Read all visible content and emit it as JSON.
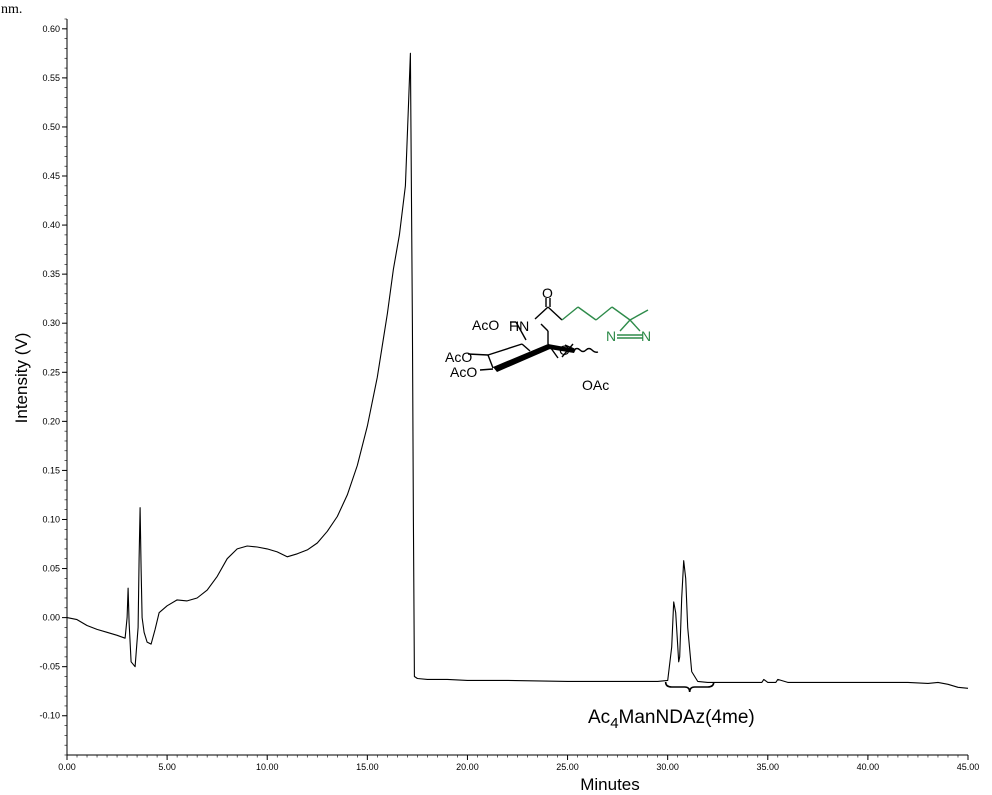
{
  "corner_text": "nm.",
  "chart_data": {
    "type": "line",
    "title": "",
    "xlabel": "Minutes",
    "ylabel": "Intensity (V)",
    "xlim": [
      0,
      45
    ],
    "ylim": [
      -0.14,
      0.61
    ],
    "x_ticks": [
      "0.00",
      "5.00",
      "10.00",
      "15.00",
      "20.00",
      "25.00",
      "30.00",
      "35.00",
      "40.00",
      "45.00"
    ],
    "x_tick_values": [
      0,
      5,
      10,
      15,
      20,
      25,
      30,
      35,
      40,
      45
    ],
    "y_ticks": [
      "0.60",
      "0.55",
      "0.50",
      "0.45",
      "0.40",
      "0.35",
      "0.30",
      "0.25",
      "0.20",
      "0.15",
      "0.10",
      "0.05",
      "0.00",
      "-0.05",
      "-0.10"
    ],
    "y_tick_values": [
      0.6,
      0.55,
      0.5,
      0.45,
      0.4,
      0.35,
      0.3,
      0.25,
      0.2,
      0.15,
      0.1,
      0.05,
      0.0,
      -0.05,
      -0.1
    ],
    "grid": false,
    "series": [
      {
        "x": [
          0,
          0.5,
          1.0,
          1.5,
          2.0,
          2.5,
          2.9,
          3.0,
          3.05,
          3.1,
          3.2,
          3.4,
          3.55,
          3.6,
          3.65,
          3.7,
          3.75,
          3.85,
          4.0,
          4.2,
          4.4,
          4.6,
          5.0,
          5.5,
          6.0,
          6.5,
          7.0,
          7.5,
          8.0,
          8.5,
          9.0,
          9.5,
          10.0,
          10.5,
          11.0,
          11.5,
          12.0,
          12.5,
          13.0,
          13.5,
          14.0,
          14.5,
          15.0,
          15.5,
          16.0,
          16.3,
          16.6,
          16.9,
          17.05,
          17.15,
          17.25,
          17.3,
          17.35,
          17.5,
          18.0,
          19.0,
          20.0,
          22.0,
          25.0,
          28.0,
          29.5,
          30.0,
          30.2,
          30.3,
          30.4,
          30.55,
          30.6,
          30.7,
          30.8,
          30.9,
          31.0,
          31.2,
          31.5,
          32.0,
          33.0,
          34.0,
          34.7,
          34.8,
          35.0,
          35.4,
          35.5,
          36.0,
          38.0,
          40.0,
          42.0,
          43.0,
          43.5,
          44.0,
          44.5,
          45.0
        ],
        "y": [
          0.0,
          -0.002,
          -0.008,
          -0.012,
          -0.015,
          -0.018,
          -0.021,
          0.0,
          0.03,
          -0.005,
          -0.045,
          -0.05,
          -0.01,
          0.06,
          0.112,
          0.05,
          0.0,
          -0.015,
          -0.025,
          -0.027,
          -0.012,
          0.005,
          0.012,
          0.018,
          0.017,
          0.02,
          0.028,
          0.042,
          0.06,
          0.07,
          0.073,
          0.072,
          0.07,
          0.067,
          0.062,
          0.065,
          0.069,
          0.076,
          0.088,
          0.103,
          0.125,
          0.155,
          0.195,
          0.245,
          0.31,
          0.355,
          0.39,
          0.44,
          0.52,
          0.575,
          0.3,
          0.1,
          -0.06,
          -0.062,
          -0.063,
          -0.063,
          -0.064,
          -0.064,
          -0.065,
          -0.065,
          -0.065,
          -0.064,
          -0.03,
          0.016,
          0.005,
          -0.045,
          -0.04,
          0.02,
          0.058,
          0.04,
          -0.01,
          -0.055,
          -0.065,
          -0.066,
          -0.066,
          -0.066,
          -0.066,
          -0.063,
          -0.066,
          -0.066,
          -0.063,
          -0.066,
          -0.066,
          -0.066,
          -0.066,
          -0.067,
          -0.066,
          -0.068,
          -0.071,
          -0.072
        ]
      }
    ],
    "annotations": [
      {
        "text_main": "Ac",
        "text_sub": "4",
        "text_rest": "ManNDAz(4me)",
        "bracket_range": [
          29.9,
          32.3
        ]
      }
    ]
  },
  "molecule": {
    "labels": [
      "AcO",
      "HN",
      "O",
      "N",
      "N",
      "AcO",
      "AcO",
      "O",
      "OAc"
    ],
    "diazirine_color": "#2e8b4a"
  }
}
